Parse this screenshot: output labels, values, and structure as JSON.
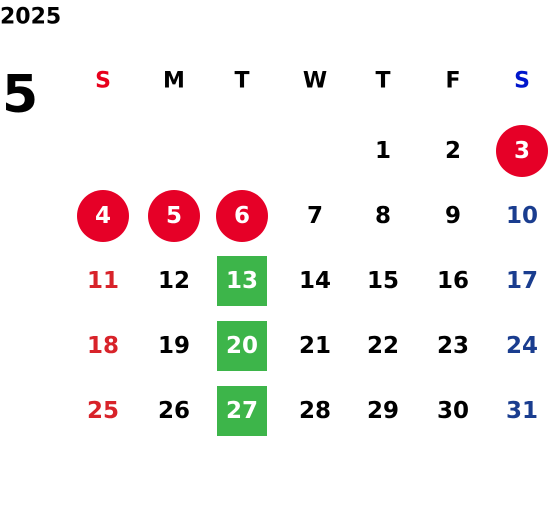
{
  "year": "2025",
  "month": "5",
  "weekdays": [
    "S",
    "M",
    "T",
    "W",
    "T",
    "F",
    "S"
  ],
  "weeks": [
    [
      null,
      null,
      null,
      null,
      "1",
      "2",
      {
        "text": "3",
        "style": "circle"
      }
    ],
    [
      {
        "text": "4",
        "style": "circle"
      },
      {
        "text": "5",
        "style": "circle"
      },
      {
        "text": "6",
        "style": "circle"
      },
      "7",
      "8",
      "9",
      "10"
    ],
    [
      "11",
      "12",
      {
        "text": "13",
        "style": "square"
      },
      "14",
      "15",
      "16",
      "17"
    ],
    [
      "18",
      "19",
      {
        "text": "20",
        "style": "square"
      },
      "21",
      "22",
      "23",
      "24"
    ],
    [
      "25",
      "26",
      {
        "text": "27",
        "style": "square"
      },
      "28",
      "29",
      "30",
      "31"
    ]
  ]
}
